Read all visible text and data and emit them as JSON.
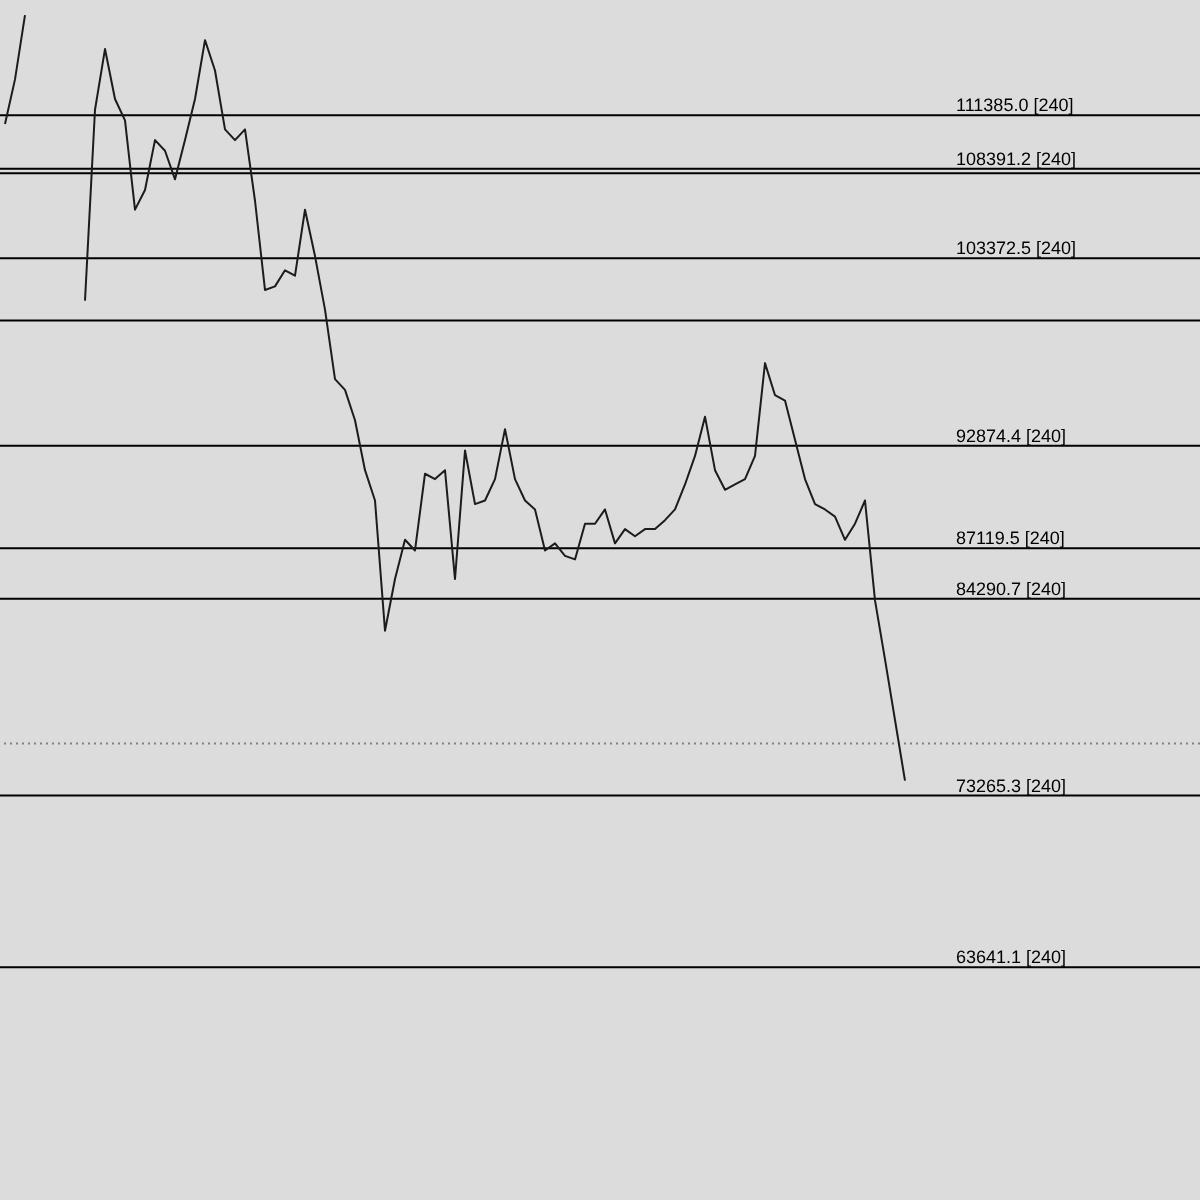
{
  "chart_data": {
    "type": "line",
    "categories": [
      null,
      null,
      null,
      null,
      null,
      null,
      null,
      null,
      null,
      null,
      null,
      null,
      null,
      null,
      null,
      null,
      null,
      null,
      null,
      null,
      null,
      null,
      null,
      null,
      null,
      null,
      null,
      null,
      null,
      null,
      null,
      null,
      null,
      null,
      null,
      null,
      null,
      null,
      null,
      null,
      null,
      null,
      null,
      null,
      null,
      null,
      null,
      null,
      null,
      null,
      null,
      null,
      null,
      null,
      null,
      null,
      null,
      null,
      null,
      null,
      null,
      null,
      null,
      null,
      null,
      null,
      null,
      null,
      null,
      null,
      null,
      null,
      null,
      null,
      null,
      null,
      null,
      null,
      null,
      null,
      null,
      null,
      null,
      null,
      null,
      null,
      null,
      null,
      null,
      null,
      null,
      null,
      null,
      null,
      null,
      null,
      null,
      null,
      null,
      null,
      null,
      null,
      null,
      null,
      null,
      null,
      null,
      null,
      null,
      null,
      null,
      null,
      null,
      null,
      null,
      null,
      null,
      null,
      null,
      null
    ],
    "series": [
      {
        "color": "#1c1c1c",
        "values": [
          110900,
          113400,
          117000,
          null,
          null,
          null,
          null,
          null,
          null,
          null,
          null,
          null,
          null,
          null,
          null,
          null,
          null,
          null,
          null,
          null,
          null,
          null,
          null,
          null,
          null,
          null,
          null,
          null,
          null,
          null,
          null,
          null,
          null,
          null,
          null,
          null,
          null,
          null,
          null,
          null,
          null,
          null,
          null,
          null,
          null,
          null,
          null,
          null,
          null,
          null,
          null,
          null,
          null,
          null,
          null,
          null,
          null,
          null,
          null,
          null,
          null,
          null,
          null,
          null,
          null,
          null,
          null,
          null,
          null,
          null,
          null,
          null,
          null,
          null,
          null,
          null,
          null,
          null,
          null,
          null,
          null,
          null,
          null,
          null,
          null,
          null,
          null,
          null,
          null,
          null,
          null,
          null,
          null,
          null,
          null,
          null,
          null,
          null,
          null,
          null,
          null,
          null,
          null,
          null,
          null,
          null,
          null,
          null,
          null,
          null,
          null,
          null,
          null,
          null,
          null,
          null,
          null,
          null,
          null,
          null
        ]
      },
      {
        "color": "#1c1c1c",
        "values": [
          null,
          null,
          null,
          null,
          null,
          null,
          null,
          null,
          101000,
          111700,
          115100,
          112300,
          111100,
          106100,
          107200,
          110000,
          109400,
          107800,
          110000,
          112300,
          115600,
          113900,
          110600,
          110000,
          110600,
          106600,
          101600,
          101800,
          102700,
          102400,
          106100,
          103500,
          100500,
          96600,
          96000,
          94300,
          91500,
          89800,
          82500,
          85400,
          87600,
          87000,
          91300,
          91000,
          91500,
          85400,
          92600,
          89600,
          89800,
          91000,
          93800,
          91000,
          89800,
          89300,
          87000,
          87400,
          86700,
          86500,
          88500,
          88500,
          89300,
          87400,
          88200,
          87800,
          88200,
          88200,
          88700,
          89300,
          90700,
          92300,
          94500,
          91500,
          90400,
          90700,
          91000,
          92300,
          97500,
          95700,
          95400,
          93200,
          91000,
          89600,
          89300,
          88900,
          87600,
          88500,
          89800,
          84200,
          80900,
          77500,
          74100,
          null,
          null,
          null,
          null,
          null,
          null,
          null,
          null,
          null,
          null,
          null,
          null,
          null,
          null,
          null,
          null,
          null,
          null,
          null,
          null,
          null,
          null,
          null,
          null,
          null,
          null,
          null,
          null,
          null
        ]
      }
    ],
    "ylim": [
      50600,
      117850
    ],
    "tick_labels": false,
    "ref_lines": [
      {
        "axis": "y",
        "value": 111385.0,
        "label": "111385.0 [240]",
        "color": "#000000"
      },
      {
        "axis": "y",
        "value": 108391.2,
        "label": "108391.2 [240]",
        "color": "#000000"
      },
      {
        "axis": "y",
        "value": 108140,
        "color": "#000000"
      },
      {
        "axis": "y",
        "value": 103372.5,
        "label": "103372.5 [240]",
        "color": "#000000"
      },
      {
        "axis": "y",
        "value": 99890,
        "color": "#000000"
      },
      {
        "axis": "y",
        "value": 92874.4,
        "label": "92874.4 [240]",
        "color": "#000000"
      },
      {
        "axis": "y",
        "value": 87119.5,
        "label": "87119.5 [240]",
        "color": "#000000"
      },
      {
        "axis": "y",
        "value": 84290.7,
        "label": "84290.7 [240]",
        "color": "#000000"
      },
      {
        "axis": "y",
        "value": 76190,
        "color": "#808080",
        "line_style": "dotted"
      },
      {
        "axis": "y",
        "value": 73265.3,
        "label": "73265.3 [240]",
        "color": "#000000"
      },
      {
        "axis": "y",
        "value": 63641.1,
        "label": "63641.1 [240]",
        "color": "#000000"
      }
    ]
  }
}
